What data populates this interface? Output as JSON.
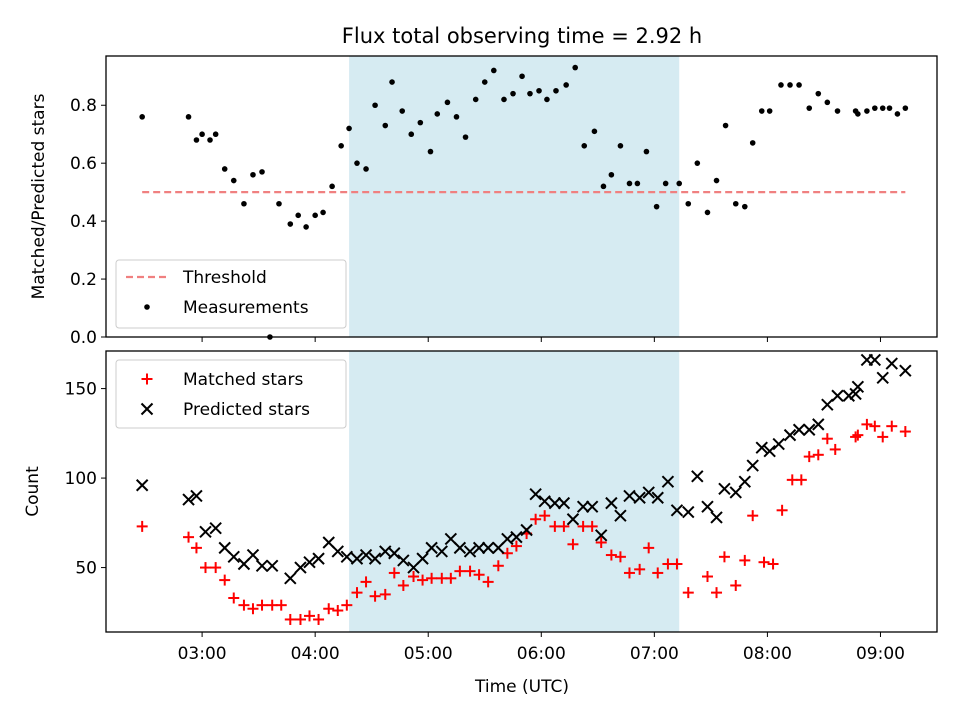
{
  "title": "Flux total observing time = 2.92 h",
  "colors": {
    "highlight": "#add8e6",
    "threshold": "#f08080",
    "measurements": "#000000",
    "matched": "#ff0000",
    "predicted": "#000000"
  },
  "chart_data": [
    {
      "type": "scatter",
      "panel": "top",
      "ylabel": "Matched/Predicted stars",
      "ylim": [
        0,
        0.97
      ],
      "yticks": [
        0.0,
        0.2,
        0.4,
        0.6,
        0.8
      ],
      "ytick_labels": [
        "0.0",
        "0.2",
        "0.4",
        "0.6",
        "0.8"
      ],
      "x_unit": "hours UTC",
      "xlim": [
        2.15,
        9.5
      ],
      "highlight_span": [
        4.3,
        7.22
      ],
      "legend": {
        "position": "lower left",
        "threshold_label": "Threshold",
        "measurements_label": "Measurements"
      },
      "threshold": {
        "name": "Threshold",
        "value": 0.5,
        "x": [
          2.47,
          9.22
        ],
        "style": "dashed"
      },
      "series": [
        {
          "name": "Measurements",
          "x": [
            2.47,
            2.88,
            2.95,
            3.0,
            3.07,
            3.12,
            3.2,
            3.28,
            3.37,
            3.45,
            3.53,
            3.6,
            3.68,
            3.78,
            3.85,
            3.92,
            4.0,
            4.07,
            4.15,
            4.23,
            4.3,
            4.37,
            4.45,
            4.53,
            4.62,
            4.68,
            4.77,
            4.85,
            4.93,
            5.02,
            5.08,
            5.17,
            5.25,
            5.33,
            5.42,
            5.5,
            5.58,
            5.67,
            5.75,
            5.83,
            5.9,
            5.98,
            6.05,
            6.13,
            6.22,
            6.3,
            6.38,
            6.47,
            6.55,
            6.62,
            6.7,
            6.78,
            6.85,
            6.93,
            7.02,
            7.1,
            7.22,
            7.3,
            7.38,
            7.47,
            7.55,
            7.63,
            7.72,
            7.8,
            7.87,
            7.95,
            8.02,
            8.12,
            8.2,
            8.28,
            8.37,
            8.45,
            8.53,
            8.62,
            8.78,
            8.8,
            8.88,
            8.95,
            9.02,
            9.08,
            9.15,
            9.22
          ],
          "y": [
            0.76,
            0.76,
            0.68,
            0.7,
            0.68,
            0.7,
            0.58,
            0.54,
            0.46,
            0.56,
            0.57,
            0.0,
            0.46,
            0.39,
            0.42,
            0.38,
            0.42,
            0.43,
            0.52,
            0.66,
            0.72,
            0.6,
            0.58,
            0.8,
            0.73,
            0.88,
            0.78,
            0.7,
            0.74,
            0.64,
            0.77,
            0.81,
            0.76,
            0.69,
            0.82,
            0.88,
            0.92,
            0.82,
            0.84,
            0.9,
            0.84,
            0.85,
            0.82,
            0.85,
            0.87,
            0.93,
            0.66,
            0.71,
            0.52,
            0.56,
            0.66,
            0.53,
            0.53,
            0.64,
            0.45,
            0.53,
            0.53,
            0.46,
            0.6,
            0.43,
            0.54,
            0.73,
            0.46,
            0.45,
            0.67,
            0.78,
            0.78,
            0.87,
            0.87,
            0.87,
            0.79,
            0.84,
            0.81,
            0.78,
            0.78,
            0.77,
            0.78,
            0.79,
            0.79,
            0.79,
            0.77,
            0.79
          ]
        }
      ]
    },
    {
      "type": "scatter",
      "panel": "bottom",
      "xlabel": "Time (UTC)",
      "ylabel": "Count",
      "x_unit": "hours UTC",
      "xlim": [
        2.15,
        9.5
      ],
      "xticks": [
        3,
        4,
        5,
        6,
        7,
        8,
        9
      ],
      "xtick_labels": [
        "03:00",
        "04:00",
        "05:00",
        "06:00",
        "07:00",
        "08:00",
        "09:00"
      ],
      "ylim": [
        14,
        171
      ],
      "yticks": [
        50,
        100,
        150
      ],
      "ytick_labels": [
        "50",
        "100",
        "150"
      ],
      "highlight_span": [
        4.3,
        7.22
      ],
      "legend": {
        "position": "upper left",
        "matched_label": "Matched stars",
        "predicted_label": "Predicted stars"
      },
      "series": [
        {
          "name": "Matched stars",
          "marker": "+",
          "x": [
            2.47,
            2.88,
            2.95,
            3.03,
            3.12,
            3.2,
            3.28,
            3.37,
            3.45,
            3.53,
            3.62,
            3.7,
            3.78,
            3.87,
            3.95,
            4.03,
            4.12,
            4.2,
            4.28,
            4.37,
            4.45,
            4.53,
            4.62,
            4.7,
            4.78,
            4.87,
            4.95,
            5.03,
            5.12,
            5.2,
            5.28,
            5.37,
            5.45,
            5.53,
            5.62,
            5.7,
            5.78,
            5.87,
            5.95,
            6.03,
            6.12,
            6.2,
            6.28,
            6.37,
            6.45,
            6.53,
            6.62,
            6.7,
            6.78,
            6.87,
            6.95,
            7.03,
            7.12,
            7.2,
            7.3,
            7.47,
            7.55,
            7.62,
            7.72,
            7.8,
            7.87,
            7.97,
            8.05,
            8.13,
            8.22,
            8.3,
            8.37,
            8.45,
            8.53,
            8.6,
            8.78,
            8.8,
            8.88,
            8.95,
            9.02,
            9.1,
            9.22
          ],
          "y": [
            73,
            67,
            61,
            50,
            50,
            43,
            33,
            29,
            27,
            29,
            29,
            29,
            21,
            21,
            23,
            21,
            27,
            26,
            29,
            36,
            42,
            34,
            35,
            47,
            40,
            45,
            43,
            44,
            44,
            44,
            48,
            48,
            46,
            42,
            51,
            58,
            62,
            69,
            77,
            79,
            73,
            73,
            63,
            73,
            73,
            64,
            57,
            56,
            47,
            49,
            61,
            47,
            52,
            52,
            36,
            45,
            36,
            56,
            40,
            54,
            79,
            53,
            52,
            82,
            99,
            99,
            112,
            113,
            122,
            116,
            123,
            124,
            130,
            129,
            123,
            129,
            126
          ]
        },
        {
          "name": "Predicted stars",
          "marker": "x",
          "x": [
            2.47,
            2.88,
            2.95,
            3.03,
            3.12,
            3.2,
            3.28,
            3.37,
            3.45,
            3.53,
            3.62,
            3.78,
            3.87,
            3.95,
            4.03,
            4.12,
            4.2,
            4.28,
            4.37,
            4.45,
            4.53,
            4.62,
            4.7,
            4.78,
            4.87,
            4.95,
            5.03,
            5.12,
            5.2,
            5.28,
            5.37,
            5.45,
            5.53,
            5.62,
            5.7,
            5.78,
            5.87,
            5.95,
            6.03,
            6.12,
            6.2,
            6.28,
            6.37,
            6.45,
            6.53,
            6.62,
            6.7,
            6.78,
            6.87,
            6.95,
            7.03,
            7.12,
            7.2,
            7.3,
            7.38,
            7.47,
            7.55,
            7.62,
            7.72,
            7.8,
            7.87,
            7.95,
            8.02,
            8.1,
            8.2,
            8.28,
            8.37,
            8.45,
            8.53,
            8.62,
            8.72,
            8.78,
            8.8,
            8.88,
            8.95,
            9.02,
            9.1,
            9.22
          ],
          "y": [
            96,
            88,
            90,
            70,
            72,
            61,
            56,
            52,
            57,
            51,
            51,
            44,
            50,
            53,
            55,
            64,
            59,
            56,
            55,
            57,
            55,
            59,
            58,
            54,
            50,
            55,
            61,
            59,
            66,
            61,
            59,
            61,
            61,
            61,
            66,
            67,
            71,
            91,
            87,
            86,
            86,
            77,
            84,
            84,
            68,
            86,
            79,
            90,
            89,
            92,
            89,
            98,
            82,
            81,
            101,
            84,
            78,
            94,
            92,
            98,
            107,
            117,
            115,
            119,
            124,
            127,
            127,
            130,
            141,
            146,
            146,
            147,
            151,
            166,
            166,
            156,
            164,
            160
          ]
        }
      ]
    }
  ]
}
